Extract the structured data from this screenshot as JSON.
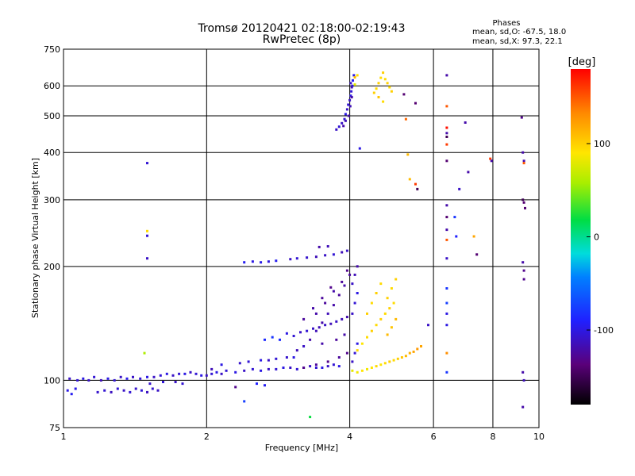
{
  "chart_data": {
    "type": "scatter",
    "title": "Tromsø 20120421 02:18:00-02:19:43",
    "subtitle": "RwPretec (8p)",
    "phase_stats": {
      "heading": "Phases",
      "line_o": "mean, sd,O:  -67.5,  18.0",
      "line_x": "mean, sd,X:  97.3,  22.1"
    },
    "xlabel": "Frequency [MHz]",
    "ylabel": "Stationary phase Virtual Height [km]",
    "x_scale": "log",
    "y_scale": "log",
    "xlim": [
      1,
      10
    ],
    "ylim": [
      75,
      750
    ],
    "x_ticks": [
      1,
      2,
      4,
      6,
      8,
      10
    ],
    "x_tick_labels": [
      "1",
      "2",
      "4",
      "6",
      "8",
      "10"
    ],
    "y_ticks": [
      75,
      100,
      200,
      300,
      400,
      500,
      600,
      750
    ],
    "y_tick_labels": [
      "75",
      "100",
      "200",
      "300",
      "400",
      "500",
      "600",
      "750"
    ],
    "grid": true,
    "colorbar": {
      "label": "[deg]",
      "range": [
        -180,
        180
      ],
      "ticks": [
        100,
        0,
        -100
      ],
      "tick_labels": [
        "100",
        "0",
        "-100"
      ]
    },
    "points": [
      [
        1.02,
        94,
        -100
      ],
      [
        1.04,
        92,
        -95
      ],
      [
        1.06,
        95,
        -98
      ],
      [
        1.03,
        101,
        -110
      ],
      [
        1.07,
        100,
        -105
      ],
      [
        1.1,
        101,
        -100
      ],
      [
        1.13,
        100,
        -110
      ],
      [
        1.16,
        102,
        -105
      ],
      [
        1.2,
        100,
        -115
      ],
      [
        1.24,
        101,
        -100
      ],
      [
        1.28,
        100,
        -105
      ],
      [
        1.32,
        102,
        -110
      ],
      [
        1.36,
        101,
        -98
      ],
      [
        1.4,
        102,
        -110
      ],
      [
        1.45,
        101,
        -105
      ],
      [
        1.5,
        102,
        -100
      ],
      [
        1.55,
        102,
        -110
      ],
      [
        1.6,
        103,
        -105
      ],
      [
        1.65,
        104,
        -100
      ],
      [
        1.7,
        103,
        -110
      ],
      [
        1.75,
        104,
        -105
      ],
      [
        1.8,
        104,
        -100
      ],
      [
        1.85,
        105,
        -110
      ],
      [
        1.9,
        104,
        -105
      ],
      [
        1.95,
        103,
        -100
      ],
      [
        2.0,
        103,
        -110
      ],
      [
        2.05,
        104,
        -105
      ],
      [
        2.1,
        105,
        -100
      ],
      [
        2.15,
        104,
        -110
      ],
      [
        2.2,
        106,
        -105
      ],
      [
        2.3,
        105,
        -100
      ],
      [
        2.4,
        106,
        -110
      ],
      [
        2.5,
        107,
        -105
      ],
      [
        2.6,
        106,
        -100
      ],
      [
        2.7,
        107,
        -110
      ],
      [
        2.8,
        107,
        -105
      ],
      [
        2.9,
        108,
        -100
      ],
      [
        3.0,
        108,
        -110
      ],
      [
        3.1,
        107,
        -105
      ],
      [
        3.2,
        108,
        -100
      ],
      [
        3.3,
        109,
        -110
      ],
      [
        3.4,
        108,
        -105
      ],
      [
        3.5,
        108,
        -100
      ],
      [
        3.6,
        109,
        -110
      ],
      [
        3.7,
        110,
        -105
      ],
      [
        3.8,
        109,
        -100
      ],
      [
        1.18,
        93,
        -108
      ],
      [
        1.22,
        94,
        -106
      ],
      [
        1.26,
        93,
        -112
      ],
      [
        1.3,
        95,
        -104
      ],
      [
        1.34,
        94,
        -110
      ],
      [
        1.38,
        93,
        -105
      ],
      [
        1.42,
        95,
        -108
      ],
      [
        1.46,
        94,
        -104
      ],
      [
        1.5,
        93,
        -112
      ],
      [
        1.54,
        95,
        -106
      ],
      [
        1.58,
        94,
        -110
      ],
      [
        1.52,
        98,
        -108
      ],
      [
        1.62,
        99,
        -104
      ],
      [
        1.72,
        99,
        -110
      ],
      [
        1.78,
        98,
        -106
      ],
      [
        1.48,
        118,
        60
      ],
      [
        1.5,
        375,
        -105
      ],
      [
        1.5,
        248,
        95
      ],
      [
        1.5,
        241,
        -105
      ],
      [
        1.5,
        210,
        -110
      ],
      [
        2.05,
        107,
        -115
      ],
      [
        2.15,
        110,
        -100
      ],
      [
        2.35,
        111,
        -108
      ],
      [
        2.45,
        112,
        -105
      ],
      [
        2.6,
        113,
        -100
      ],
      [
        2.7,
        113,
        -110
      ],
      [
        2.8,
        114,
        -105
      ],
      [
        2.95,
        115,
        -108
      ],
      [
        3.05,
        115,
        -100
      ],
      [
        2.4,
        205,
        -95
      ],
      [
        2.5,
        206,
        -100
      ],
      [
        2.6,
        205,
        -98
      ],
      [
        2.7,
        206,
        -102
      ],
      [
        2.8,
        207,
        -95
      ],
      [
        3.0,
        209,
        -110
      ],
      [
        3.1,
        210,
        -105
      ],
      [
        3.25,
        211,
        -108
      ],
      [
        3.4,
        212,
        -115
      ],
      [
        3.55,
        214,
        -110
      ],
      [
        3.7,
        215,
        -105
      ],
      [
        3.85,
        218,
        -115
      ],
      [
        3.95,
        220,
        -110
      ],
      [
        3.45,
        225,
        -120
      ],
      [
        3.6,
        226,
        -115
      ],
      [
        2.65,
        128,
        -85
      ],
      [
        2.75,
        130,
        -80
      ],
      [
        2.85,
        128,
        -85
      ],
      [
        2.95,
        133,
        -100
      ],
      [
        3.05,
        131,
        -105
      ],
      [
        3.15,
        134,
        -110
      ],
      [
        3.25,
        135,
        -105
      ],
      [
        3.35,
        137,
        -110
      ],
      [
        3.45,
        138,
        -115
      ],
      [
        3.55,
        140,
        -110
      ],
      [
        3.65,
        141,
        -115
      ],
      [
        3.75,
        143,
        -110
      ],
      [
        3.85,
        145,
        -115
      ],
      [
        3.95,
        147,
        -120
      ],
      [
        2.55,
        98,
        -90
      ],
      [
        2.65,
        97,
        -95
      ],
      [
        3.1,
        120,
        -115
      ],
      [
        3.2,
        123,
        -110
      ],
      [
        3.3,
        128,
        -120
      ],
      [
        3.4,
        135,
        -115
      ],
      [
        3.5,
        142,
        -120
      ],
      [
        3.6,
        150,
        -115
      ],
      [
        3.7,
        158,
        -120
      ],
      [
        3.8,
        168,
        -125
      ],
      [
        3.9,
        178,
        -120
      ],
      [
        4.0,
        190,
        -125
      ],
      [
        3.4,
        150,
        -120
      ],
      [
        3.55,
        160,
        -125
      ],
      [
        3.7,
        172,
        -120
      ],
      [
        3.85,
        182,
        -125
      ],
      [
        3.95,
        195,
        -130
      ],
      [
        3.2,
        145,
        -125
      ],
      [
        3.35,
        155,
        -120
      ],
      [
        3.5,
        165,
        -125
      ],
      [
        3.65,
        176,
        -130
      ],
      [
        3.2,
        108,
        -130
      ],
      [
        3.4,
        110,
        -125
      ],
      [
        3.6,
        112,
        -130
      ],
      [
        3.8,
        115,
        -125
      ],
      [
        3.95,
        118,
        -130
      ],
      [
        3.5,
        125,
        -120
      ],
      [
        3.75,
        128,
        -125
      ],
      [
        3.9,
        132,
        -120
      ],
      [
        4.05,
        112,
        -110
      ],
      [
        4.1,
        118,
        -105
      ],
      [
        4.15,
        125,
        -100
      ],
      [
        4.05,
        150,
        -110
      ],
      [
        4.1,
        160,
        -105
      ],
      [
        4.15,
        170,
        -100
      ],
      [
        4.05,
        180,
        -110
      ],
      [
        4.1,
        190,
        -115
      ],
      [
        4.15,
        200,
        -120
      ],
      [
        3.75,
        460,
        -110
      ],
      [
        3.8,
        468,
        -105
      ],
      [
        3.85,
        478,
        -110
      ],
      [
        3.9,
        490,
        -105
      ],
      [
        3.92,
        505,
        -100
      ],
      [
        3.95,
        520,
        -110
      ],
      [
        3.97,
        535,
        -105
      ],
      [
        4.0,
        550,
        -110
      ],
      [
        4.02,
        565,
        -100
      ],
      [
        4.03,
        580,
        -105
      ],
      [
        4.05,
        600,
        -100
      ],
      [
        4.06,
        620,
        -95
      ],
      [
        4.08,
        640,
        -100
      ],
      [
        4.02,
        610,
        -110
      ],
      [
        4.04,
        595,
        -115
      ],
      [
        3.88,
        470,
        -120
      ],
      [
        3.92,
        485,
        -115
      ],
      [
        3.98,
        500,
        -120
      ],
      [
        4.01,
        530,
        -115
      ],
      [
        4.04,
        560,
        -120
      ],
      [
        4.1,
        632,
        110
      ],
      [
        4.1,
        605,
        80
      ],
      [
        4.15,
        640,
        95
      ],
      [
        4.2,
        410,
        -100
      ],
      [
        4.05,
        106,
        80
      ],
      [
        4.15,
        105,
        85
      ],
      [
        4.25,
        106,
        90
      ],
      [
        4.35,
        107,
        85
      ],
      [
        4.45,
        108,
        90
      ],
      [
        4.55,
        109,
        95
      ],
      [
        4.65,
        110,
        90
      ],
      [
        4.75,
        111,
        95
      ],
      [
        4.85,
        112,
        100
      ],
      [
        4.95,
        113,
        95
      ],
      [
        5.05,
        114,
        100
      ],
      [
        5.15,
        115,
        105
      ],
      [
        5.25,
        116,
        110
      ],
      [
        5.35,
        118,
        115
      ],
      [
        5.45,
        119,
        120
      ],
      [
        5.55,
        121,
        125
      ],
      [
        5.65,
        123,
        120
      ],
      [
        4.15,
        120,
        95
      ],
      [
        4.25,
        125,
        90
      ],
      [
        4.35,
        130,
        95
      ],
      [
        4.45,
        135,
        100
      ],
      [
        4.55,
        140,
        95
      ],
      [
        4.65,
        145,
        100
      ],
      [
        4.75,
        150,
        95
      ],
      [
        4.85,
        155,
        100
      ],
      [
        4.95,
        160,
        95
      ],
      [
        4.35,
        150,
        100
      ],
      [
        4.45,
        160,
        95
      ],
      [
        4.55,
        170,
        100
      ],
      [
        4.65,
        180,
        95
      ],
      [
        4.8,
        165,
        100
      ],
      [
        4.9,
        175,
        95
      ],
      [
        5.0,
        185,
        100
      ],
      [
        4.8,
        132,
        110
      ],
      [
        4.9,
        138,
        105
      ],
      [
        5.0,
        145,
        110
      ],
      [
        4.5,
        575,
        100
      ],
      [
        4.55,
        590,
        95
      ],
      [
        4.6,
        610,
        100
      ],
      [
        4.65,
        630,
        95
      ],
      [
        4.7,
        650,
        100
      ],
      [
        4.75,
        625,
        95
      ],
      [
        4.8,
        610,
        100
      ],
      [
        4.85,
        595,
        95
      ],
      [
        4.9,
        580,
        100
      ],
      [
        4.6,
        560,
        105
      ],
      [
        4.7,
        545,
        95
      ],
      [
        5.2,
        570,
        -140
      ],
      [
        5.25,
        490,
        145
      ],
      [
        5.3,
        395,
        110
      ],
      [
        5.35,
        340,
        110
      ],
      [
        5.5,
        330,
        160
      ],
      [
        5.55,
        320,
        -150
      ],
      [
        5.5,
        540,
        -140
      ],
      [
        5.85,
        140,
        -110
      ],
      [
        6.4,
        640,
        -120
      ],
      [
        6.4,
        530,
        150
      ],
      [
        6.4,
        465,
        175
      ],
      [
        6.4,
        450,
        -120
      ],
      [
        6.4,
        440,
        -150
      ],
      [
        6.4,
        420,
        160
      ],
      [
        6.4,
        380,
        -140
      ],
      [
        6.4,
        290,
        -120
      ],
      [
        6.4,
        270,
        -140
      ],
      [
        6.4,
        250,
        -120
      ],
      [
        6.4,
        235,
        150
      ],
      [
        6.4,
        210,
        -110
      ],
      [
        6.4,
        175,
        -80
      ],
      [
        6.4,
        160,
        -75
      ],
      [
        6.4,
        150,
        -100
      ],
      [
        6.4,
        140,
        -100
      ],
      [
        6.4,
        118,
        130
      ],
      [
        6.4,
        105,
        -80
      ],
      [
        6.65,
        270,
        -80
      ],
      [
        6.7,
        240,
        -90
      ],
      [
        6.8,
        320,
        -110
      ],
      [
        7.0,
        480,
        -120
      ],
      [
        7.1,
        355,
        -120
      ],
      [
        7.3,
        240,
        120
      ],
      [
        7.4,
        215,
        -140
      ],
      [
        7.9,
        385,
        160
      ],
      [
        7.95,
        380,
        -120
      ],
      [
        9.2,
        495,
        -130
      ],
      [
        9.25,
        400,
        -120
      ],
      [
        9.3,
        380,
        -120
      ],
      [
        9.3,
        375,
        150
      ],
      [
        9.25,
        300,
        -150
      ],
      [
        9.3,
        295,
        -140
      ],
      [
        9.35,
        285,
        -140
      ],
      [
        9.25,
        205,
        -120
      ],
      [
        9.3,
        195,
        -130
      ],
      [
        9.3,
        185,
        -130
      ],
      [
        9.25,
        105,
        -120
      ],
      [
        9.3,
        100,
        -115
      ],
      [
        9.25,
        85,
        -120
      ],
      [
        3.3,
        80,
        20
      ],
      [
        2.4,
        88,
        -75
      ],
      [
        2.3,
        96,
        -130
      ]
    ]
  }
}
